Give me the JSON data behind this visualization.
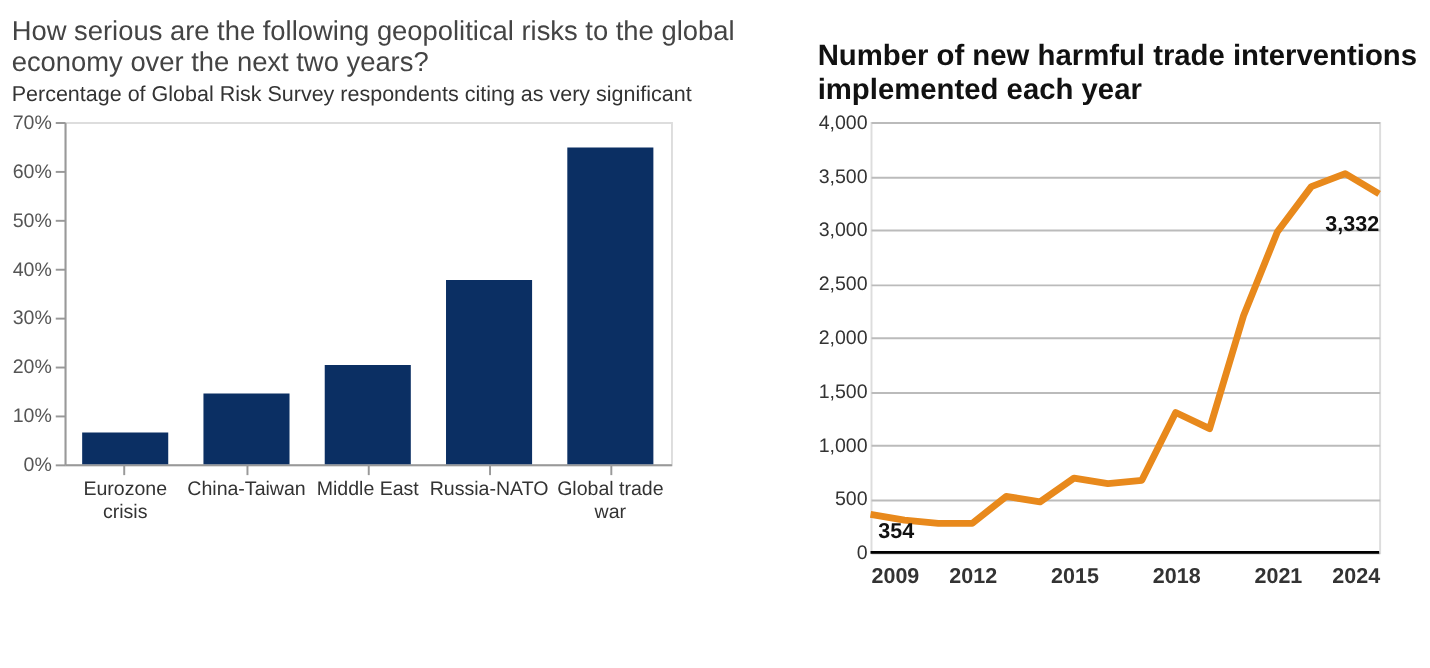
{
  "chart_data": [
    {
      "type": "bar",
      "title": "How serious are the following geopolitical risks to the global economy over the next two years?",
      "subtitle": "Percentage of Global Risk Survey respondents citing as very significant",
      "categories": [
        "Eurozone crisis",
        "China-Taiwan",
        "Middle East",
        "Russia-NATO",
        "Global trade war"
      ],
      "values": [
        6.5,
        14.5,
        20.3,
        37.7,
        64.8
      ],
      "color": "#0b2f63",
      "ylim": [
        0,
        70
      ],
      "yticks": [
        {
          "value": 0,
          "label": "0%"
        },
        {
          "value": 10,
          "label": "10%"
        },
        {
          "value": 20,
          "label": "20%"
        },
        {
          "value": 30,
          "label": "30%"
        },
        {
          "value": 40,
          "label": "40%"
        },
        {
          "value": 50,
          "label": "50%"
        },
        {
          "value": 60,
          "label": "60%"
        },
        {
          "value": 70,
          "label": "70%"
        }
      ],
      "grid": false,
      "legend": false
    },
    {
      "type": "line",
      "title": "Number of new harmful trade interventions implemented each year",
      "x": [
        2009,
        2010,
        2011,
        2012,
        2013,
        2014,
        2015,
        2016,
        2017,
        2018,
        2019,
        2020,
        2021,
        2022,
        2023,
        2024
      ],
      "series": [
        {
          "color": "#e8891c",
          "values": [
            354,
            300,
            270,
            270,
            520,
            470,
            690,
            640,
            670,
            1300,
            1150,
            2200,
            2980,
            3400,
            3520,
            3332
          ]
        }
      ],
      "xlim": [
        2009,
        2024
      ],
      "xticks": [
        2009,
        2012,
        2015,
        2018,
        2021,
        2024
      ],
      "ylim": [
        0,
        4000
      ],
      "yticks": [
        {
          "value": 0,
          "label": "0"
        },
        {
          "value": 500,
          "label": "500"
        },
        {
          "value": 1000,
          "label": "1,000"
        },
        {
          "value": 1500,
          "label": "1,500"
        },
        {
          "value": 2000,
          "label": "2,000"
        },
        {
          "value": 2500,
          "label": "2,500"
        },
        {
          "value": 3000,
          "label": "3,000"
        },
        {
          "value": 3500,
          "label": "3,500"
        },
        {
          "value": 4000,
          "label": "4,000"
        }
      ],
      "annotations": [
        {
          "text": "354",
          "x": 2009,
          "y": 354
        },
        {
          "text": "3,332",
          "x": 2024,
          "y": 3332
        }
      ],
      "grid": "y",
      "marker": "none",
      "line_style": "solid",
      "legend": false
    }
  ]
}
